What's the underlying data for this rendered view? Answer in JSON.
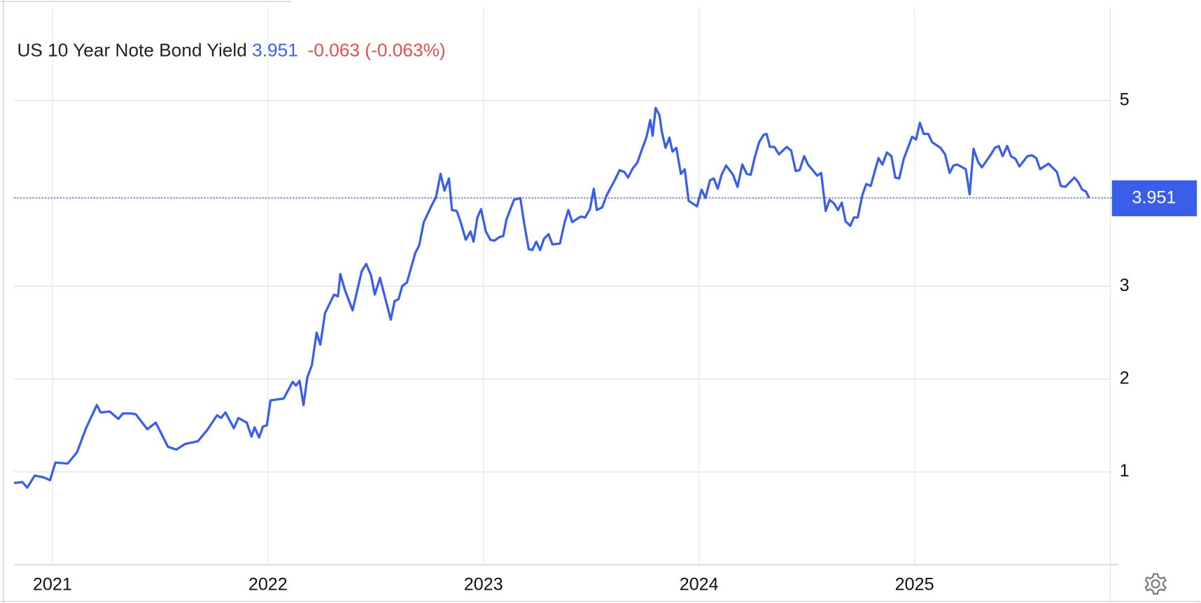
{
  "chart_data": {
    "type": "line",
    "title": "US 10 Year Note Bond Yield",
    "last": 3.951,
    "change": "-0.063",
    "change_percent": "(-0.063%)",
    "color": "#3b5ee8",
    "grid": true,
    "xlim": [
      2020.822,
      2025.909
    ],
    "xticks": [
      2021,
      2022,
      2023,
      2024,
      2025
    ],
    "ylim": [
      0,
      6
    ],
    "yticks": [
      1,
      2,
      3,
      5
    ],
    "x": [
      2020.822,
      2020.861,
      2020.883,
      2020.918,
      2020.961,
      2020.989,
      2021.014,
      2021.071,
      2021.114,
      2021.156,
      2021.206,
      2021.224,
      2021.266,
      2021.306,
      2021.327,
      2021.366,
      2021.387,
      2021.44,
      2021.48,
      2021.536,
      2021.575,
      2021.615,
      2021.675,
      2021.718,
      2021.764,
      2021.782,
      2021.803,
      2021.842,
      2021.863,
      2021.902,
      2021.924,
      2021.938,
      2021.959,
      2021.977,
      2021.995,
      2022.012,
      2022.073,
      2022.115,
      2022.13,
      2022.147,
      2022.165,
      2022.183,
      2022.204,
      2022.226,
      2022.243,
      2022.265,
      2022.307,
      2022.325,
      2022.336,
      2022.357,
      2022.393,
      2022.435,
      2022.456,
      2022.478,
      2022.496,
      2022.52,
      2022.57,
      2022.588,
      2022.606,
      2022.623,
      2022.645,
      2022.684,
      2022.702,
      2022.723,
      2022.762,
      2022.78,
      2022.801,
      2022.819,
      2022.84,
      2022.854,
      2022.876,
      2022.893,
      2022.918,
      2022.94,
      2022.954,
      2022.972,
      2022.989,
      2023.011,
      2023.032,
      2023.05,
      2023.075,
      2023.092,
      2023.107,
      2023.142,
      2023.171,
      2023.188,
      2023.21,
      2023.227,
      2023.245,
      2023.263,
      2023.281,
      2023.302,
      2023.32,
      2023.355,
      2023.377,
      2023.394,
      2023.412,
      2023.451,
      2023.472,
      2023.494,
      2023.512,
      2023.526,
      2023.551,
      2023.572,
      2023.611,
      2023.632,
      2023.654,
      2023.671,
      2023.693,
      2023.714,
      2023.732,
      2023.757,
      2023.774,
      2023.785,
      2023.799,
      2023.817,
      2023.828,
      2023.845,
      2023.863,
      2023.877,
      2023.895,
      2023.916,
      2023.934,
      2023.952,
      2023.991,
      2024.012,
      2024.03,
      2024.051,
      2024.069,
      2024.087,
      2024.105,
      2024.126,
      2024.158,
      2024.179,
      2024.201,
      2024.222,
      2024.24,
      2024.258,
      2024.279,
      2024.3,
      2024.314,
      2024.329,
      2024.35,
      2024.371,
      2024.407,
      2024.428,
      2024.449,
      2024.467,
      2024.488,
      2024.506,
      2024.549,
      2024.567,
      2024.588,
      2024.606,
      2024.627,
      2024.645,
      2024.663,
      2024.68,
      2024.702,
      2024.719,
      2024.737,
      2024.758,
      2024.776,
      2024.797,
      2024.815,
      2024.833,
      2024.851,
      2024.872,
      2024.893,
      2024.911,
      2024.929,
      2024.95,
      2024.989,
      2025.007,
      2025.025,
      2025.043,
      2025.064,
      2025.082,
      2025.121,
      2025.142,
      2025.163,
      2025.181,
      2025.199,
      2025.238,
      2025.256,
      2025.274,
      2025.295,
      2025.313,
      2025.355,
      2025.373,
      2025.391,
      2025.409,
      2025.43,
      2025.448,
      2025.469,
      2025.487,
      2025.524,
      2025.545,
      2025.565,
      2025.583,
      2025.622,
      2025.661,
      2025.679,
      2025.7,
      2025.742,
      2025.76,
      2025.778,
      2025.796,
      2025.81
    ],
    "values": [
      0.88,
      0.89,
      0.83,
      0.96,
      0.94,
      0.91,
      1.1,
      1.09,
      1.21,
      1.47,
      1.72,
      1.64,
      1.65,
      1.57,
      1.63,
      1.63,
      1.62,
      1.46,
      1.53,
      1.27,
      1.24,
      1.3,
      1.33,
      1.45,
      1.61,
      1.58,
      1.64,
      1.47,
      1.58,
      1.53,
      1.38,
      1.48,
      1.37,
      1.49,
      1.5,
      1.77,
      1.79,
      1.97,
      1.93,
      1.98,
      1.72,
      2.02,
      2.15,
      2.5,
      2.37,
      2.71,
      2.91,
      2.89,
      3.13,
      2.96,
      2.74,
      3.16,
      3.24,
      3.12,
      2.91,
      3.09,
      2.64,
      2.84,
      2.86,
      3.0,
      3.04,
      3.36,
      3.44,
      3.69,
      3.88,
      3.96,
      4.21,
      4.03,
      4.16,
      3.82,
      3.81,
      3.7,
      3.5,
      3.59,
      3.48,
      3.74,
      3.83,
      3.59,
      3.5,
      3.49,
      3.53,
      3.54,
      3.72,
      3.93,
      3.95,
      3.69,
      3.4,
      3.39,
      3.48,
      3.39,
      3.51,
      3.56,
      3.45,
      3.46,
      3.69,
      3.82,
      3.69,
      3.75,
      3.74,
      3.83,
      4.05,
      3.82,
      3.85,
      3.98,
      4.15,
      4.25,
      4.23,
      4.17,
      4.27,
      4.33,
      4.45,
      4.61,
      4.79,
      4.62,
      4.92,
      4.84,
      4.66,
      4.49,
      4.6,
      4.45,
      4.49,
      4.21,
      4.26,
      3.92,
      3.86,
      4.04,
      3.95,
      4.14,
      4.16,
      4.05,
      4.2,
      4.3,
      4.2,
      4.07,
      4.31,
      4.21,
      4.2,
      4.38,
      4.55,
      4.63,
      4.64,
      4.5,
      4.5,
      4.42,
      4.5,
      4.46,
      4.24,
      4.25,
      4.4,
      4.31,
      4.19,
      4.22,
      3.81,
      3.93,
      3.89,
      3.82,
      3.9,
      3.7,
      3.65,
      3.74,
      3.74,
      3.98,
      4.1,
      4.08,
      4.23,
      4.38,
      4.31,
      4.44,
      4.4,
      4.17,
      4.16,
      4.37,
      4.61,
      4.58,
      4.76,
      4.64,
      4.64,
      4.55,
      4.49,
      4.42,
      4.22,
      4.3,
      4.31,
      4.26,
      3.99,
      4.48,
      4.34,
      4.28,
      4.42,
      4.49,
      4.51,
      4.4,
      4.51,
      4.4,
      4.37,
      4.29,
      4.4,
      4.41,
      4.38,
      4.26,
      4.32,
      4.23,
      4.08,
      4.07,
      4.17,
      4.12,
      4.04,
      4.02,
      3.951
    ]
  }
}
